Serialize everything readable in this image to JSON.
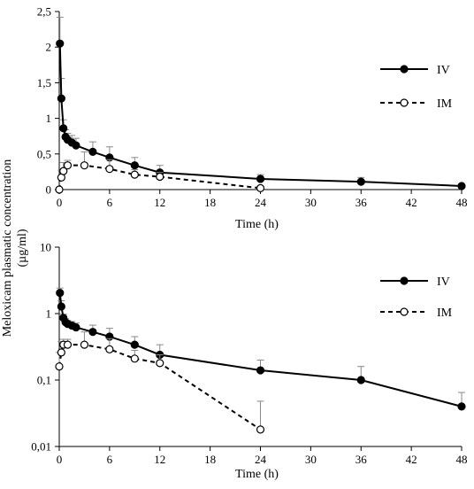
{
  "figure": {
    "shared_ylabel": "Meloxicam plasmatic concentration\n(µg/ml)"
  },
  "chart_data": [
    {
      "type": "line",
      "panel": "top",
      "xlabel": "Time (h)",
      "ylabel": "Meloxicam plasmatic concentration (µg/ml)",
      "xlim": [
        0,
        48
      ],
      "ylim": [
        0,
        2.5
      ],
      "x_ticks": [
        0,
        6,
        12,
        18,
        24,
        30,
        36,
        42,
        48
      ],
      "x_tick_labels": [
        "0",
        "6",
        "12",
        "18",
        "24",
        "30",
        "36",
        "42",
        "48"
      ],
      "y_ticks": [
        0,
        0.5,
        1,
        1.5,
        2,
        2.5
      ],
      "y_tick_labels": [
        "0",
        "0,5",
        "1",
        "1,5",
        "2",
        "2,5"
      ],
      "y_scale": "linear",
      "grid": false,
      "legend_position": "top-right",
      "series": [
        {
          "name": "IV",
          "style": "solid",
          "marker": "filled-circle",
          "color": "#000000",
          "x": [
            0.08,
            0.25,
            0.5,
            0.75,
            1,
            1.5,
            2,
            4,
            6,
            9,
            12,
            24,
            36,
            48
          ],
          "y": [
            2.05,
            1.28,
            0.86,
            0.74,
            0.7,
            0.66,
            0.62,
            0.53,
            0.45,
            0.34,
            0.24,
            0.15,
            0.11,
            0.05
          ],
          "error": [
            0.37,
            0.28,
            0.12,
            0.1,
            0.09,
            0.1,
            0.1,
            0.14,
            0.15,
            0.11,
            0.1,
            0.06,
            0.06,
            0.02
          ]
        },
        {
          "name": "IM",
          "style": "dashed",
          "marker": "open-circle",
          "color": "#000000",
          "x": [
            0,
            0.25,
            0.5,
            1,
            3,
            6,
            9,
            12,
            24
          ],
          "y": [
            0.0,
            0.17,
            0.26,
            0.34,
            0.34,
            0.29,
            0.21,
            0.18,
            0.02
          ],
          "error": [
            0.0,
            0.1,
            0.12,
            0.07,
            0.19,
            0.13,
            0.07,
            0.06,
            0.03
          ]
        }
      ]
    },
    {
      "type": "line",
      "panel": "bottom",
      "xlabel": "Time (h)",
      "ylabel": "Meloxicam plasmatic concentration (µg/ml)",
      "xlim": [
        0,
        48
      ],
      "ylim": [
        0.01,
        10
      ],
      "x_ticks": [
        0,
        6,
        12,
        18,
        24,
        30,
        36,
        42,
        48
      ],
      "x_tick_labels": [
        "0",
        "6",
        "12",
        "18",
        "24",
        "30",
        "36",
        "42",
        "48"
      ],
      "y_ticks": [
        0.01,
        0.1,
        1,
        10
      ],
      "y_tick_labels": [
        "0,01",
        "0,1",
        "1",
        "10"
      ],
      "y_scale": "log",
      "grid": false,
      "legend_position": "top-right",
      "series": [
        {
          "name": "IV",
          "style": "solid",
          "marker": "filled-circle",
          "color": "#000000",
          "x": [
            0.08,
            0.25,
            0.5,
            0.75,
            1,
            1.5,
            2,
            4,
            6,
            9,
            12,
            24,
            36,
            48
          ],
          "y": [
            2.05,
            1.28,
            0.86,
            0.74,
            0.7,
            0.66,
            0.62,
            0.53,
            0.45,
            0.34,
            0.24,
            0.14,
            0.1,
            0.04
          ],
          "error": [
            0.37,
            0.28,
            0.12,
            0.1,
            0.09,
            0.1,
            0.1,
            0.14,
            0.15,
            0.11,
            0.1,
            0.06,
            0.06,
            0.025
          ]
        },
        {
          "name": "IM",
          "style": "dashed",
          "marker": "open-circle",
          "color": "#000000",
          "x": [
            0,
            0.25,
            0.5,
            1,
            3,
            6,
            9,
            12,
            24
          ],
          "y": [
            0.16,
            0.26,
            0.34,
            0.34,
            0.34,
            0.29,
            0.21,
            0.18,
            0.018
          ],
          "error": [
            0.1,
            0.12,
            0.07,
            0.07,
            0.19,
            0.13,
            0.07,
            0.06,
            0.03
          ]
        }
      ]
    }
  ]
}
